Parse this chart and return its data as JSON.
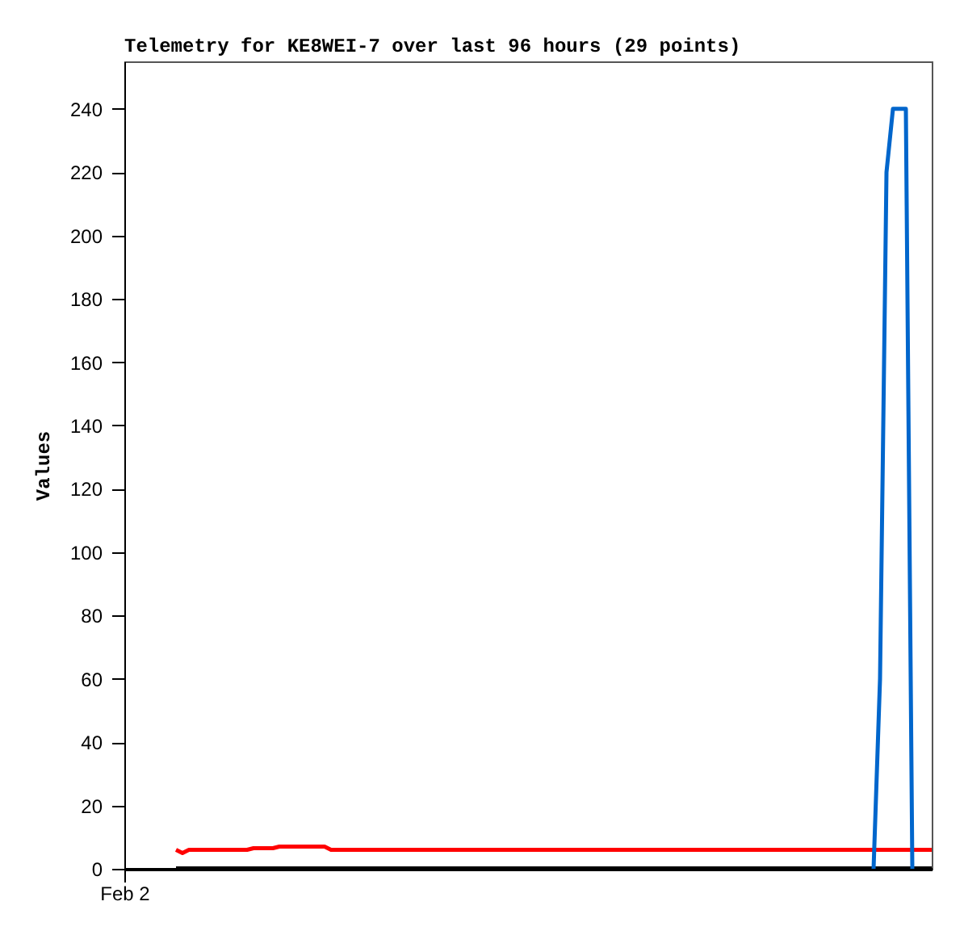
{
  "chart_data": {
    "type": "line",
    "title": "Telemetry for KE8WEI-7 over last 96 hours (29 points)",
    "ylabel": "Values",
    "categories": [
      "Feb 2",
      null,
      null,
      null,
      null,
      null,
      null,
      null,
      null,
      null,
      null,
      null,
      null,
      null,
      null,
      null,
      null,
      null,
      null,
      null,
      null,
      null,
      null,
      null,
      null,
      null,
      null,
      null,
      null,
      null,
      null,
      null,
      null,
      null,
      null,
      null,
      null,
      null,
      null,
      null,
      null,
      null,
      null,
      null,
      null,
      null,
      null,
      null,
      null,
      null,
      null,
      null,
      null,
      null,
      null,
      null,
      null,
      null,
      null,
      null,
      null,
      null,
      null,
      null,
      null,
      null,
      null,
      null,
      null,
      null,
      null,
      null,
      null,
      null,
      null,
      null,
      null,
      null,
      null,
      null,
      null,
      null,
      null,
      null,
      null,
      null,
      null,
      null,
      null,
      null,
      null,
      null,
      null,
      null,
      null,
      null,
      null,
      null,
      null,
      null,
      null,
      null,
      null,
      null,
      null,
      null,
      null,
      null,
      null,
      null,
      null,
      null,
      null,
      null,
      null,
      null,
      null,
      null,
      null,
      null,
      null,
      null,
      null,
      null,
      null,
      null
    ],
    "ylim": [
      0,
      255
    ],
    "yticks": [
      0,
      20,
      40,
      60,
      80,
      100,
      120,
      140,
      160,
      180,
      200,
      220,
      240
    ],
    "grid": false,
    "marker": "none",
    "line_style": "solid",
    "series": [
      {
        "color": "#000000",
        "values": [
          null,
          null,
          null,
          null,
          null,
          null,
          null,
          null,
          0,
          0,
          0,
          0,
          0,
          0,
          0,
          0,
          0,
          0,
          0,
          0,
          0,
          0,
          0,
          0,
          0,
          0,
          0,
          0,
          0,
          0,
          0,
          0,
          0,
          0,
          0,
          0,
          0,
          0,
          0,
          0,
          0,
          0,
          0,
          0,
          0,
          0,
          0,
          0,
          0,
          0,
          0,
          0,
          0,
          0,
          0,
          0,
          0,
          0,
          0,
          0,
          0,
          0,
          0,
          0,
          0,
          0,
          0,
          0,
          0,
          0,
          0,
          0,
          0,
          0,
          0,
          0,
          0,
          0,
          0,
          0,
          0,
          0,
          0,
          0,
          0,
          0,
          0,
          0,
          0,
          0,
          0,
          0,
          0,
          0,
          0,
          0,
          0,
          0,
          0,
          0,
          0,
          0,
          0,
          0,
          0,
          0,
          0,
          0,
          0,
          0,
          0,
          0,
          0,
          0,
          0,
          0,
          0,
          0,
          0,
          0,
          0,
          0,
          0,
          0,
          0,
          0
        ]
      },
      {
        "color": "#ff0000",
        "values": [
          null,
          null,
          null,
          null,
          null,
          null,
          null,
          null,
          6,
          5,
          6,
          6,
          6,
          6,
          6,
          6,
          6,
          6,
          6,
          6,
          6.5,
          6.5,
          6.5,
          6.5,
          7,
          7,
          7,
          7,
          7,
          7,
          7,
          7,
          6,
          6,
          6,
          6,
          6,
          6,
          6,
          6,
          6,
          6,
          6,
          6,
          6,
          6,
          6,
          6,
          6,
          6,
          6,
          6,
          6,
          6,
          6,
          6,
          6,
          6,
          6,
          6,
          6,
          6,
          6,
          6,
          6,
          6,
          6,
          6,
          6,
          6,
          6,
          6,
          6,
          6,
          6,
          6,
          6,
          6,
          6,
          6,
          6,
          6,
          6,
          6,
          6,
          6,
          6,
          6,
          6,
          6,
          6,
          6,
          6,
          6,
          6,
          6,
          6,
          6,
          6,
          6,
          6,
          6,
          6,
          6,
          6,
          6,
          6,
          6,
          6,
          6,
          6,
          6,
          6,
          6,
          6,
          6,
          6,
          6,
          6,
          6,
          6,
          6,
          6,
          6,
          6,
          6
        ]
      },
      {
        "color": "#0066cc",
        "values": [
          null,
          null,
          null,
          null,
          null,
          null,
          null,
          null,
          null,
          null,
          null,
          null,
          null,
          null,
          null,
          null,
          null,
          null,
          null,
          null,
          null,
          null,
          null,
          null,
          null,
          null,
          null,
          null,
          null,
          null,
          null,
          null,
          null,
          null,
          null,
          null,
          null,
          null,
          null,
          null,
          null,
          null,
          null,
          null,
          null,
          null,
          null,
          null,
          null,
          null,
          null,
          null,
          null,
          null,
          null,
          null,
          null,
          null,
          null,
          null,
          null,
          null,
          null,
          null,
          null,
          null,
          null,
          null,
          null,
          null,
          null,
          null,
          null,
          null,
          null,
          null,
          null,
          null,
          null,
          null,
          null,
          null,
          null,
          null,
          null,
          null,
          null,
          null,
          null,
          null,
          null,
          null,
          null,
          null,
          null,
          null,
          null,
          null,
          null,
          null,
          null,
          null,
          null,
          null,
          null,
          null,
          null,
          null,
          null,
          null,
          null,
          null,
          null,
          null,
          null,
          null,
          0,
          60,
          220,
          240,
          240,
          240,
          0,
          null,
          null,
          null
        ]
      }
    ]
  }
}
